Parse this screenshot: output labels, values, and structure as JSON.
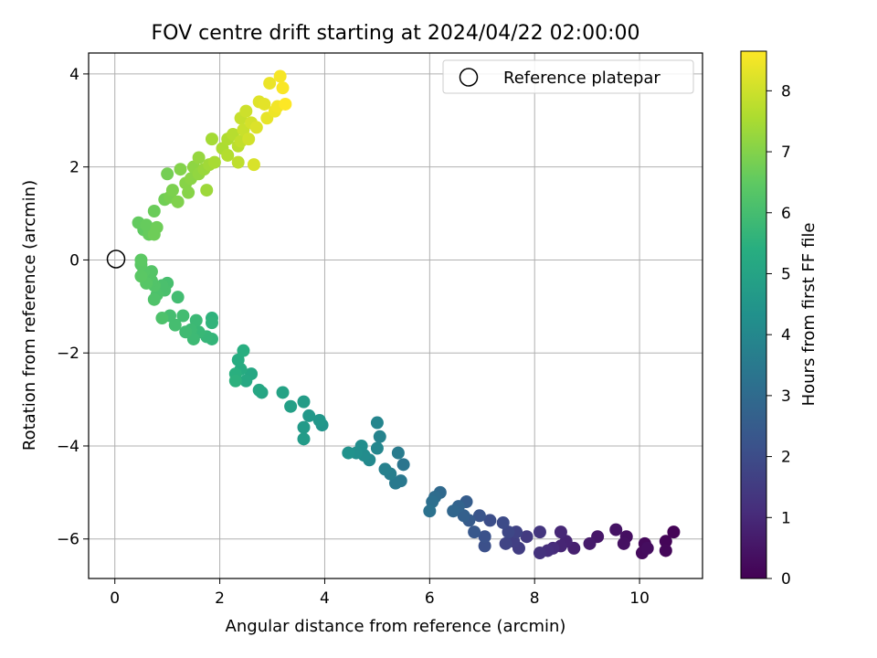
{
  "chart_data": {
    "type": "scatter",
    "title": "FOV centre drift starting at 2024/04/22 02:00:00",
    "xlabel": "Angular distance from reference (arcmin)",
    "ylabel": "Rotation from reference (arcmin)",
    "xlim": [
      -0.5,
      11.2
    ],
    "ylim": [
      -6.85,
      4.45
    ],
    "xticks": [
      0,
      2,
      4,
      6,
      8,
      10
    ],
    "yticks": [
      -6,
      -4,
      -2,
      0,
      2,
      4
    ],
    "grid": true,
    "legend": {
      "placement": "top-right",
      "entries": [
        "Reference platepar"
      ]
    },
    "reference_point": {
      "x": 0,
      "y": 0
    },
    "colorbar": {
      "label": "Hours from first FF file",
      "range": [
        0,
        8.65
      ],
      "ticks": [
        0,
        1,
        2,
        3,
        4,
        5,
        6,
        7,
        8
      ],
      "colormap": "viridis"
    },
    "points": [
      [
        10.65,
        -5.85,
        0.05
      ],
      [
        10.5,
        -6.05,
        0.1
      ],
      [
        10.5,
        -6.25,
        0.15
      ],
      [
        10.1,
        -6.1,
        0.2
      ],
      [
        10.05,
        -6.3,
        0.25
      ],
      [
        10.15,
        -6.2,
        0.3
      ],
      [
        9.75,
        -5.95,
        0.35
      ],
      [
        9.7,
        -6.1,
        0.4
      ],
      [
        9.55,
        -5.8,
        0.45
      ],
      [
        9.2,
        -5.95,
        0.55
      ],
      [
        9.05,
        -6.1,
        0.65
      ],
      [
        8.75,
        -6.2,
        0.75
      ],
      [
        8.6,
        -6.05,
        0.85
      ],
      [
        8.5,
        -6.15,
        0.9
      ],
      [
        8.5,
        -5.85,
        0.95
      ],
      [
        8.35,
        -6.2,
        1.05
      ],
      [
        8.25,
        -6.25,
        1.15
      ],
      [
        8.1,
        -6.3,
        1.25
      ],
      [
        8.1,
        -5.85,
        1.35
      ],
      [
        7.85,
        -5.95,
        1.45
      ],
      [
        7.7,
        -6.2,
        1.55
      ],
      [
        7.6,
        -6.05,
        1.6
      ],
      [
        7.65,
        -5.85,
        1.7
      ],
      [
        7.45,
        -6.1,
        1.75
      ],
      [
        7.5,
        -5.85,
        1.85
      ],
      [
        7.4,
        -5.65,
        1.95
      ],
      [
        7.15,
        -5.6,
        2.05
      ],
      [
        7.05,
        -6.15,
        2.1
      ],
      [
        7.05,
        -5.95,
        2.15
      ],
      [
        6.95,
        -5.5,
        2.25
      ],
      [
        6.85,
        -5.85,
        2.35
      ],
      [
        6.75,
        -5.6,
        2.45
      ],
      [
        6.7,
        -5.2,
        2.55
      ],
      [
        6.65,
        -5.5,
        2.65
      ],
      [
        6.55,
        -5.3,
        2.75
      ],
      [
        6.45,
        -5.4,
        2.85
      ],
      [
        6.2,
        -5.0,
        2.95
      ],
      [
        6.1,
        -5.1,
        3.05
      ],
      [
        6.05,
        -5.2,
        3.15
      ],
      [
        6.0,
        -5.4,
        3.25
      ],
      [
        5.5,
        -4.4,
        3.35
      ],
      [
        5.45,
        -4.75,
        3.45
      ],
      [
        5.35,
        -4.8,
        3.5
      ],
      [
        5.4,
        -4.15,
        3.55
      ],
      [
        5.25,
        -4.6,
        3.65
      ],
      [
        5.15,
        -4.5,
        3.75
      ],
      [
        5.05,
        -3.8,
        3.85
      ],
      [
        5.0,
        -3.5,
        3.9
      ],
      [
        5.0,
        -4.05,
        3.95
      ],
      [
        4.85,
        -4.3,
        4.05
      ],
      [
        4.75,
        -4.2,
        4.15
      ],
      [
        4.7,
        -4.0,
        4.2
      ],
      [
        4.6,
        -4.15,
        4.25
      ],
      [
        4.45,
        -4.15,
        4.35
      ],
      [
        3.95,
        -3.55,
        4.45
      ],
      [
        3.9,
        -3.45,
        4.55
      ],
      [
        3.7,
        -3.35,
        4.6
      ],
      [
        3.6,
        -3.6,
        4.65
      ],
      [
        3.6,
        -3.85,
        4.7
      ],
      [
        3.6,
        -3.05,
        4.75
      ],
      [
        3.35,
        -3.15,
        4.85
      ],
      [
        3.2,
        -2.85,
        4.95
      ],
      [
        2.8,
        -2.85,
        5.05
      ],
      [
        2.75,
        -2.8,
        5.1
      ],
      [
        2.6,
        -2.45,
        5.15
      ],
      [
        2.5,
        -2.6,
        5.2
      ],
      [
        2.4,
        -2.35,
        5.3
      ],
      [
        2.35,
        -2.15,
        5.35
      ],
      [
        2.45,
        -1.95,
        5.4
      ],
      [
        2.3,
        -2.45,
        5.45
      ],
      [
        2.3,
        -2.6,
        5.5
      ],
      [
        1.85,
        -1.25,
        5.55
      ],
      [
        1.85,
        -1.35,
        5.6
      ],
      [
        1.85,
        -1.7,
        5.65
      ],
      [
        1.75,
        -1.65,
        5.7
      ],
      [
        1.6,
        -1.55,
        5.75
      ],
      [
        1.55,
        -1.3,
        5.8
      ],
      [
        1.5,
        -1.7,
        5.85
      ],
      [
        1.45,
        -1.5,
        5.85
      ],
      [
        1.35,
        -1.55,
        5.9
      ],
      [
        1.3,
        -1.2,
        5.95
      ],
      [
        1.2,
        -0.8,
        5.95
      ],
      [
        1.15,
        -1.4,
        6.0
      ],
      [
        1.05,
        -1.2,
        6.0
      ],
      [
        1.0,
        -0.5,
        6.05
      ],
      [
        0.95,
        -0.65,
        6.1
      ],
      [
        0.9,
        -0.55,
        6.1
      ],
      [
        0.9,
        -1.25,
        6.15
      ],
      [
        0.8,
        -0.75,
        6.15
      ],
      [
        0.75,
        -0.85,
        6.2
      ],
      [
        0.75,
        -0.55,
        6.25
      ],
      [
        0.7,
        -0.45,
        6.25
      ],
      [
        0.7,
        -0.25,
        6.3
      ],
      [
        0.65,
        -0.35,
        6.3
      ],
      [
        0.6,
        -0.5,
        6.35
      ],
      [
        0.55,
        -0.25,
        6.35
      ],
      [
        0.5,
        -0.1,
        6.4
      ],
      [
        0.5,
        -0.35,
        6.4
      ],
      [
        0.5,
        0.0,
        6.45
      ],
      [
        0.55,
        0.65,
        6.5
      ],
      [
        0.45,
        0.8,
        6.55
      ],
      [
        0.6,
        0.75,
        6.6
      ],
      [
        0.65,
        0.55,
        6.6
      ],
      [
        0.75,
        1.05,
        6.65
      ],
      [
        0.75,
        0.55,
        6.7
      ],
      [
        0.8,
        0.7,
        6.7
      ],
      [
        0.95,
        1.3,
        6.75
      ],
      [
        1.0,
        1.85,
        6.8
      ],
      [
        1.05,
        1.35,
        6.85
      ],
      [
        1.1,
        1.5,
        6.9
      ],
      [
        1.2,
        1.25,
        6.95
      ],
      [
        1.25,
        1.95,
        7.0
      ],
      [
        1.35,
        1.65,
        7.05
      ],
      [
        1.4,
        1.45,
        7.05
      ],
      [
        1.45,
        1.75,
        7.1
      ],
      [
        1.5,
        2.0,
        7.15
      ],
      [
        1.6,
        1.85,
        7.2
      ],
      [
        1.6,
        2.2,
        7.25
      ],
      [
        1.7,
        1.95,
        7.3
      ],
      [
        1.75,
        1.5,
        7.35
      ],
      [
        1.8,
        2.05,
        7.4
      ],
      [
        1.85,
        2.6,
        7.45
      ],
      [
        1.9,
        2.1,
        7.5
      ],
      [
        2.05,
        2.4,
        7.55
      ],
      [
        2.15,
        2.6,
        7.6
      ],
      [
        2.15,
        2.25,
        7.65
      ],
      [
        2.25,
        2.7,
        7.7
      ],
      [
        2.35,
        2.45,
        7.75
      ],
      [
        2.35,
        2.1,
        7.8
      ],
      [
        2.4,
        2.55,
        7.85
      ],
      [
        2.4,
        3.05,
        7.9
      ],
      [
        2.45,
        2.8,
        7.95
      ],
      [
        2.5,
        3.2,
        8.0
      ],
      [
        2.55,
        2.6,
        8.05
      ],
      [
        2.6,
        2.95,
        8.1
      ],
      [
        2.65,
        2.05,
        8.15
      ],
      [
        2.7,
        2.85,
        8.2
      ],
      [
        2.75,
        3.4,
        8.25
      ],
      [
        2.85,
        3.35,
        8.3
      ],
      [
        2.9,
        3.05,
        8.35
      ],
      [
        2.95,
        3.8,
        8.4
      ],
      [
        3.05,
        3.2,
        8.45
      ],
      [
        3.1,
        3.3,
        8.5
      ],
      [
        3.15,
        3.95,
        8.55
      ],
      [
        3.2,
        3.7,
        8.6
      ],
      [
        3.25,
        3.35,
        8.65
      ]
    ]
  }
}
